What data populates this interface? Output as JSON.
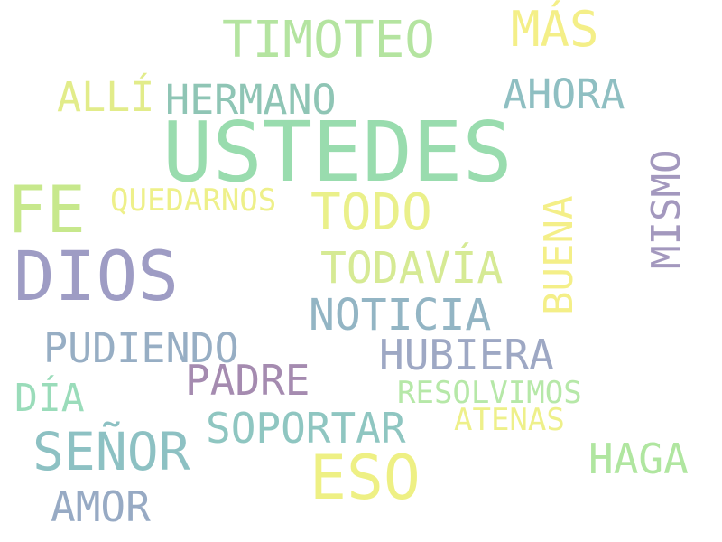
{
  "words": [
    {
      "id": "ustedes",
      "text": "USTEDES",
      "color": "#99dcae"
    },
    {
      "id": "dios",
      "text": "DIOS",
      "color": "#9e9cc4"
    },
    {
      "id": "fe",
      "text": "FE",
      "color": "#c7e88c"
    },
    {
      "id": "timoteo",
      "text": "TIMOTEO",
      "color": "#b4e4a0"
    },
    {
      "id": "mas",
      "text": "MÁS",
      "color": "#f4ef88"
    },
    {
      "id": "alli",
      "text": "ALLÍ",
      "color": "#e2ec8a"
    },
    {
      "id": "hermano",
      "text": "HERMANO",
      "color": "#8fc5b5"
    },
    {
      "id": "ahora",
      "text": "AHORA",
      "color": "#8fbfc2"
    },
    {
      "id": "quedarnos",
      "text": "QUEDARNOS",
      "color": "#eef08a"
    },
    {
      "id": "todo",
      "text": "TODO",
      "color": "#eaf08a"
    },
    {
      "id": "todavia",
      "text": "TODAVÍA",
      "color": "#d6ea94"
    },
    {
      "id": "noticia",
      "text": "NOTICIA",
      "color": "#93b5c4"
    },
    {
      "id": "pudiendo",
      "text": "PUDIENDO",
      "color": "#97aec4"
    },
    {
      "id": "hubiera",
      "text": "HUBIERA",
      "color": "#9ea8c4"
    },
    {
      "id": "padre",
      "text": "PADRE",
      "color": "#a58bb0"
    },
    {
      "id": "dia",
      "text": "DÍA",
      "color": "#9adcba"
    },
    {
      "id": "resolvimos",
      "text": "RESOLVIMOS",
      "color": "#b6e8a8"
    },
    {
      "id": "atenas",
      "text": "ATENAS",
      "color": "#eef08a"
    },
    {
      "id": "soportar",
      "text": "SOPORTAR",
      "color": "#8fc6c1"
    },
    {
      "id": "senor",
      "text": "SEÑOR",
      "color": "#8dc1c3"
    },
    {
      "id": "eso",
      "text": "ESO",
      "color": "#eef084"
    },
    {
      "id": "haga",
      "text": "HAGA",
      "color": "#b0e6a0"
    },
    {
      "id": "amor",
      "text": "AMOR",
      "color": "#97aac4"
    },
    {
      "id": "buena",
      "text": "BUENA",
      "color": "#f4ef88"
    },
    {
      "id": "mismo",
      "text": "MISMO",
      "color": "#a398be"
    }
  ]
}
